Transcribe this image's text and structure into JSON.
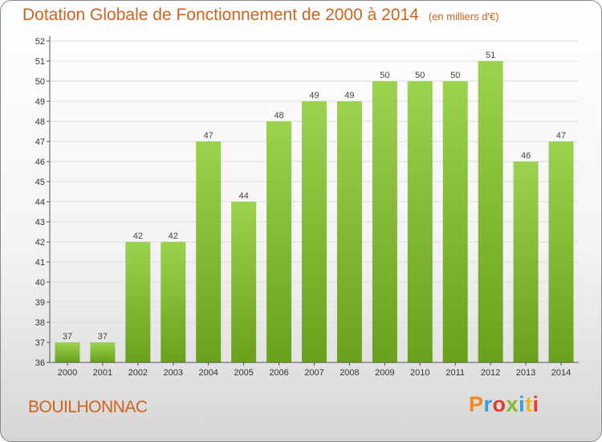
{
  "header": {
    "title": "Dotation Globale de Fonctionnement de 2000 à 2014",
    "unit": "(en milliers d'€)"
  },
  "footer": {
    "place": "BOUILHONNAC",
    "logo": "Proxiti",
    "logo_colors": [
      "#f08a1c",
      "#3b9bd6",
      "#e23a2a",
      "#7fbd2a",
      "#3b9bd6",
      "#f0b41c",
      "#e23a2a"
    ]
  },
  "colors": {
    "bar_top": "#9bd24e",
    "bar_bottom": "#6aa11c",
    "grid": "#dddddd",
    "axis": "#555555"
  },
  "chart_data": {
    "type": "bar",
    "title": "Dotation Globale de Fonctionnement de 2000 à 2014",
    "subtitle": "(en milliers d'€)",
    "categories": [
      "2000",
      "2001",
      "2002",
      "2003",
      "2004",
      "2005",
      "2006",
      "2007",
      "2008",
      "2009",
      "2010",
      "2011",
      "2012",
      "2013",
      "2014"
    ],
    "values": [
      37,
      37,
      42,
      42,
      47,
      44,
      48,
      49,
      49,
      50,
      50,
      50,
      51,
      46,
      47
    ],
    "ylim": [
      36,
      52
    ],
    "yticks": [
      36,
      37,
      38,
      39,
      40,
      41,
      42,
      43,
      44,
      45,
      46,
      47,
      48,
      49,
      50,
      51,
      52
    ],
    "grid": true,
    "legend": "none"
  }
}
